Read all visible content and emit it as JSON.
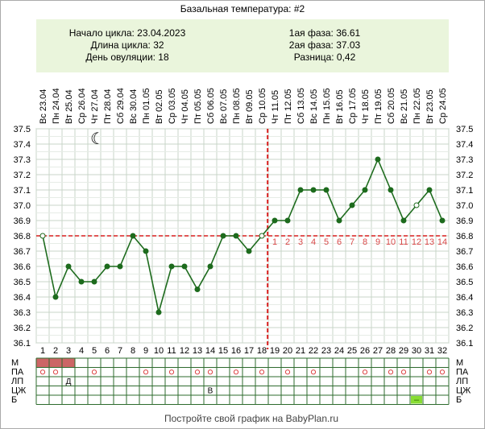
{
  "title": "Базальная температура: #2",
  "info": {
    "cycle_start": "Начало цикла: 23.04.2023",
    "cycle_length": "Длина цикла: 32",
    "ovulation_day": "День овуляции: 18",
    "phase1": "1ая фаза: 36.61",
    "phase2": "2ая фаза: 37.03",
    "difference": "Разница: 0,42"
  },
  "footer": "Постройте свой график на BabyPlan.ru",
  "colors": {
    "line": "#1d6b1d",
    "marker": "#1d6b1d",
    "coverline": "#d81f1f",
    "grid": "#c9d6c9",
    "info_bg": "#eaf5dc",
    "menses": "#cc6666",
    "b_mark": "#88dd33",
    "table_border": "#2e6b2e"
  },
  "chart_data": {
    "type": "line",
    "title": "Базальная температура: #2",
    "days": [
      "1",
      "2",
      "3",
      "4",
      "5",
      "6",
      "7",
      "8",
      "9",
      "10",
      "11",
      "12",
      "13",
      "14",
      "15",
      "16",
      "17",
      "18",
      "19",
      "20",
      "21",
      "22",
      "23",
      "24",
      "25",
      "26",
      "27",
      "28",
      "29",
      "30",
      "31",
      "32"
    ],
    "dates": [
      "Вс 23.04",
      "Пн 24.04",
      "Вт 25.04",
      "Ср 26.04",
      "Чт 27.04",
      "Пт 28.04",
      "Сб 29.04",
      "Вс 30.04",
      "Пн 01.05",
      "Вт 02.05",
      "Ср 03.05",
      "Чт 04.05",
      "Пт 05.05",
      "Сб 06.05",
      "Вс 07.05",
      "Пн 08.05",
      "Вт 09.05",
      "Ср 10.05",
      "Чт 11.05",
      "Пт 12.05",
      "Сб 13.05",
      "Вс 14.05",
      "Пн 15.05",
      "Вт 16.05",
      "Ср 17.05",
      "Чт 18.05",
      "Пт 19.05",
      "Сб 20.05",
      "Вс 21.05",
      "Пн 22.05",
      "Вт 23.05",
      "Ср 24.05"
    ],
    "values": [
      36.8,
      36.4,
      36.6,
      36.5,
      36.5,
      36.6,
      36.6,
      36.8,
      36.7,
      36.3,
      36.6,
      36.6,
      36.45,
      36.6,
      36.8,
      36.8,
      36.7,
      36.8,
      36.9,
      36.9,
      37.1,
      37.1,
      37.1,
      36.9,
      37.0,
      37.1,
      37.3,
      37.1,
      36.9,
      37.0,
      37.1,
      36.9
    ],
    "open_markers": [
      1,
      18,
      30
    ],
    "ylim": [
      36.1,
      37.5
    ],
    "yticks": [
      "37.5",
      "37.4",
      "37.3",
      "37.2",
      "37.1",
      "37.0",
      "36.9",
      "36.8",
      "36.7",
      "36.6",
      "36.5",
      "36.4",
      "36.3",
      "36.2",
      "36.1"
    ],
    "coverline": 36.8,
    "ovulation_day": 18,
    "post_ovulation_labels": [
      "1",
      "2",
      "3",
      "4",
      "5",
      "6",
      "7",
      "8",
      "9",
      "10",
      "11",
      "12",
      "13",
      "14"
    ],
    "moon_symbol": "☾",
    "moon_day": 5,
    "grid": true
  },
  "rows": {
    "labels": [
      "М",
      "ПА",
      "ЛП",
      "ЦЖ",
      "Б"
    ],
    "menses_days": [
      1,
      2,
      3
    ],
    "pa_symbol": "o",
    "pa_days": [
      1,
      2,
      5,
      9,
      11,
      13,
      14,
      16,
      18,
      20,
      22,
      26,
      28,
      29,
      31,
      32
    ],
    "lp": [
      {
        "day": 3,
        "text": "Д"
      }
    ],
    "czh": [
      {
        "day": 14,
        "text": "В"
      }
    ],
    "b": [
      {
        "day": 30,
        "text": "–"
      }
    ]
  }
}
